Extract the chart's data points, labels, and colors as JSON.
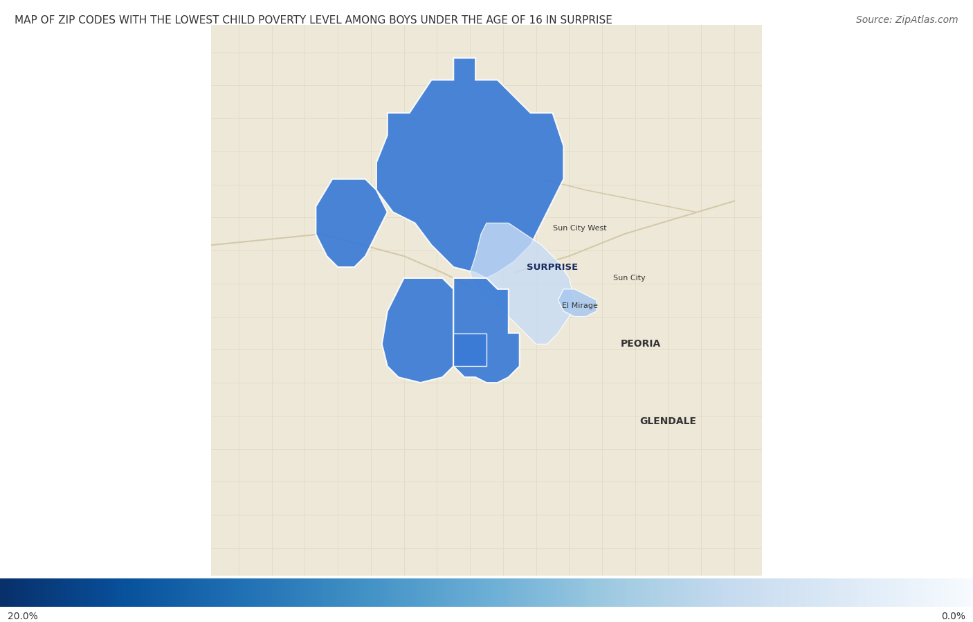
{
  "title": "MAP OF ZIP CODES WITH THE LOWEST CHILD POVERTY LEVEL AMONG BOYS UNDER THE AGE OF 16 IN SURPRISE",
  "source": "Source: ZipAtlas.com",
  "title_fontsize": 11,
  "source_fontsize": 10,
  "legend_left_label": "20.0%",
  "legend_right_label": "0.0%",
  "background_color": "#f5f0e8",
  "map_bg_color": "#ede8d8",
  "road_color": "#e5dcc8",
  "dark_blue": "#3a7bd5",
  "light_blue": "#a8c8f0",
  "lighter_blue": "#c8dcf5",
  "text_color": "#333333",
  "label_color": "#333333",
  "surprise_label": "SURPRISE",
  "sun_city_west_label": "Sun City West",
  "sun_city_label": "Sun City",
  "el_mirage_label": "El Mirage",
  "peoria_label": "PEORIA",
  "glendale_label": "GLENDALE",
  "fig_width": 14.06,
  "fig_height": 8.99,
  "dpi": 100
}
